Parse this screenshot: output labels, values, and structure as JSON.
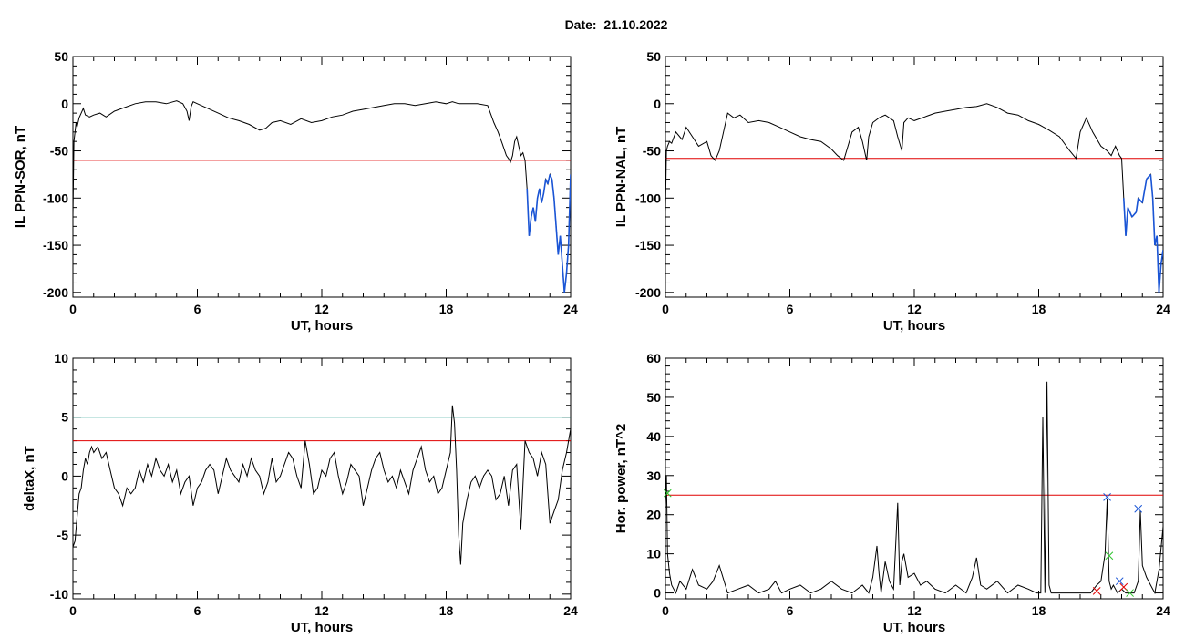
{
  "page": {
    "title": "Date:  21.10.2022"
  },
  "colors": {
    "data": "#000000",
    "red": "#e00000",
    "blue": "#1a55d6",
    "teal": "#1a9a8a",
    "green": "#2ec42e"
  },
  "chart_data": [
    {
      "id": "il-sor",
      "type": "line",
      "xlabel": "UT, hours",
      "ylabel": "IL PPN-SOR, nT",
      "xlim": [
        0,
        24
      ],
      "ylim": [
        -205,
        50
      ],
      "xticks": [
        0,
        6,
        12,
        18,
        24
      ],
      "yticks": [
        -200,
        -150,
        -100,
        -50,
        0,
        50
      ],
      "thresholds": [
        {
          "value": -60,
          "color": "red"
        }
      ],
      "below_threshold_color": "blue",
      "series": [
        {
          "x": [
            0.0,
            0.05,
            0.1,
            0.15,
            0.2,
            0.3,
            0.4,
            0.5,
            0.6,
            0.8,
            1.0,
            1.3,
            1.6,
            2.0,
            2.5,
            3.0,
            3.5,
            4.0,
            4.5,
            5.0,
            5.3,
            5.5,
            5.6,
            5.7,
            5.8,
            6.0,
            6.5,
            7.0,
            7.5,
            8.0,
            8.5,
            9.0,
            9.3,
            9.6,
            10.0,
            10.5,
            11.0,
            11.5,
            12.0,
            12.5,
            13.0,
            13.5,
            14.0,
            14.5,
            15.0,
            15.5,
            16.0,
            16.5,
            17.0,
            17.5,
            18.0,
            18.3,
            18.6,
            19.0,
            19.5,
            20.0,
            20.3,
            20.5,
            20.7,
            20.9,
            21.0,
            21.1,
            21.2,
            21.3,
            21.4,
            21.5,
            21.6,
            21.7,
            21.8,
            21.9,
            22.0,
            22.1,
            22.2,
            22.3,
            22.4,
            22.5,
            22.6,
            22.7,
            22.8,
            22.9,
            23.0,
            23.1,
            23.2,
            23.3,
            23.4,
            23.5,
            23.6,
            23.7,
            23.8,
            23.9,
            24.0
          ],
          "y": [
            -120,
            -40,
            -30,
            -20,
            -25,
            -15,
            -10,
            -5,
            -12,
            -14,
            -12,
            -10,
            -14,
            -8,
            -4,
            0,
            2,
            2,
            0,
            3,
            0,
            -8,
            -18,
            -3,
            2,
            0,
            -5,
            -10,
            -15,
            -18,
            -22,
            -28,
            -26,
            -20,
            -18,
            -22,
            -16,
            -20,
            -18,
            -14,
            -12,
            -8,
            -6,
            -4,
            -2,
            0,
            0,
            -2,
            0,
            2,
            0,
            2,
            0,
            0,
            0,
            -2,
            -20,
            -30,
            -42,
            -55,
            -58,
            -62,
            -55,
            -40,
            -35,
            -45,
            -55,
            -52,
            -60,
            -90,
            -140,
            -120,
            -110,
            -125,
            -100,
            -90,
            -105,
            -95,
            -80,
            -85,
            -75,
            -80,
            -100,
            -130,
            -160,
            -140,
            -170,
            -200,
            -180,
            -150,
            -75
          ]
        }
      ]
    },
    {
      "id": "il-nal",
      "type": "line",
      "xlabel": "UT, hours",
      "ylabel": "IL PPN-NAL, nT",
      "xlim": [
        0,
        24
      ],
      "ylim": [
        -205,
        50
      ],
      "xticks": [
        0,
        6,
        12,
        18,
        24
      ],
      "yticks": [
        -200,
        -150,
        -100,
        -50,
        0,
        50
      ],
      "thresholds": [
        {
          "value": -58,
          "color": "red"
        }
      ],
      "below_threshold_color": "blue",
      "series": [
        {
          "x": [
            0.0,
            0.05,
            0.1,
            0.2,
            0.3,
            0.5,
            0.8,
            1.0,
            1.3,
            1.6,
            2.0,
            2.2,
            2.4,
            2.6,
            2.8,
            3.0,
            3.3,
            3.6,
            4.0,
            4.5,
            5.0,
            5.5,
            6.0,
            6.5,
            7.0,
            7.5,
            8.0,
            8.3,
            8.6,
            8.8,
            9.0,
            9.3,
            9.5,
            9.7,
            9.8,
            10.0,
            10.3,
            10.6,
            11.0,
            11.2,
            11.4,
            11.5,
            11.7,
            12.0,
            12.5,
            13.0,
            13.5,
            14.0,
            14.5,
            15.0,
            15.5,
            16.0,
            16.5,
            17.0,
            17.5,
            18.0,
            18.5,
            19.0,
            19.5,
            19.8,
            20.0,
            20.3,
            20.6,
            21.0,
            21.3,
            21.5,
            21.7,
            21.9,
            22.0,
            22.1,
            22.2,
            22.3,
            22.5,
            22.7,
            22.8,
            23.0,
            23.2,
            23.4,
            23.5,
            23.6,
            23.7,
            23.8,
            23.9,
            24.0
          ],
          "y": [
            -115,
            -50,
            -45,
            -40,
            -42,
            -30,
            -38,
            -25,
            -35,
            -45,
            -40,
            -55,
            -60,
            -50,
            -30,
            -10,
            -15,
            -12,
            -20,
            -18,
            -20,
            -25,
            -30,
            -35,
            -38,
            -40,
            -48,
            -55,
            -60,
            -45,
            -30,
            -25,
            -40,
            -60,
            -35,
            -20,
            -15,
            -12,
            -18,
            -35,
            -50,
            -20,
            -15,
            -18,
            -14,
            -10,
            -8,
            -6,
            -4,
            -3,
            0,
            -4,
            -10,
            -12,
            -18,
            -22,
            -28,
            -35,
            -50,
            -58,
            -30,
            -15,
            -30,
            -45,
            -50,
            -55,
            -45,
            -55,
            -58,
            -100,
            -140,
            -110,
            -120,
            -115,
            -100,
            -105,
            -80,
            -75,
            -100,
            -150,
            -140,
            -200,
            -170,
            -155
          ]
        }
      ]
    },
    {
      "id": "deltax",
      "type": "line",
      "xlabel": "UT, hours",
      "ylabel": "deltaX, nT",
      "xlim": [
        0,
        24
      ],
      "ylim": [
        -10.4,
        10
      ],
      "xticks": [
        0,
        6,
        12,
        18,
        24
      ],
      "yticks": [
        -10,
        -5,
        0,
        5,
        10
      ],
      "thresholds": [
        {
          "value": 5,
          "color": "teal"
        },
        {
          "value": 3,
          "color": "red"
        }
      ],
      "series": [
        {
          "x": [
            0.0,
            0.1,
            0.2,
            0.3,
            0.4,
            0.5,
            0.6,
            0.7,
            0.8,
            0.9,
            1.0,
            1.2,
            1.4,
            1.6,
            1.8,
            2.0,
            2.2,
            2.4,
            2.6,
            2.8,
            3.0,
            3.2,
            3.4,
            3.6,
            3.8,
            4.0,
            4.2,
            4.4,
            4.6,
            4.8,
            5.0,
            5.2,
            5.4,
            5.6,
            5.8,
            6.0,
            6.2,
            6.4,
            6.6,
            6.8,
            7.0,
            7.2,
            7.4,
            7.6,
            7.8,
            8.0,
            8.2,
            8.4,
            8.6,
            8.8,
            9.0,
            9.2,
            9.4,
            9.6,
            9.8,
            10.0,
            10.2,
            10.4,
            10.6,
            10.8,
            11.0,
            11.2,
            11.4,
            11.6,
            11.8,
            12.0,
            12.2,
            12.4,
            12.6,
            12.8,
            13.0,
            13.2,
            13.4,
            13.6,
            13.8,
            14.0,
            14.2,
            14.4,
            14.6,
            14.8,
            15.0,
            15.2,
            15.4,
            15.6,
            15.8,
            16.0,
            16.2,
            16.4,
            16.6,
            16.8,
            17.0,
            17.2,
            17.4,
            17.6,
            17.8,
            18.0,
            18.2,
            18.3,
            18.4,
            18.5,
            18.6,
            18.7,
            18.8,
            19.0,
            19.2,
            19.4,
            19.6,
            19.8,
            20.0,
            20.2,
            20.4,
            20.6,
            20.8,
            21.0,
            21.2,
            21.4,
            21.6,
            21.8,
            22.0,
            22.2,
            22.4,
            22.6,
            22.8,
            23.0,
            23.2,
            23.4,
            23.6,
            23.8,
            24.0
          ],
          "y": [
            -6.0,
            -5.5,
            -3.5,
            -1.5,
            -1.0,
            0.5,
            1.5,
            1.0,
            2.0,
            2.5,
            2.0,
            2.5,
            1.5,
            2.0,
            0.5,
            -1.0,
            -1.5,
            -2.5,
            -1.0,
            -1.5,
            -1.0,
            0.5,
            -0.5,
            1.0,
            0.0,
            1.5,
            0.5,
            0.0,
            1.0,
            -0.5,
            0.5,
            -1.5,
            -0.5,
            0.0,
            -2.5,
            -1.0,
            -0.5,
            0.5,
            1.0,
            0.5,
            -1.5,
            0.0,
            1.5,
            0.5,
            0.0,
            -0.5,
            1.0,
            0.0,
            1.5,
            0.5,
            0.0,
            -1.5,
            -0.5,
            1.5,
            -0.5,
            0.0,
            1.0,
            2.0,
            1.5,
            0.0,
            -1.0,
            3.0,
            1.0,
            -1.5,
            -1.0,
            0.5,
            0.0,
            1.5,
            2.0,
            0.0,
            -1.5,
            -0.5,
            1.0,
            0.5,
            0.0,
            -2.5,
            -1.0,
            0.5,
            1.5,
            2.0,
            0.5,
            -0.5,
            0.0,
            -1.0,
            0.5,
            -0.5,
            -1.5,
            0.5,
            1.5,
            2.5,
            0.5,
            -0.5,
            0.0,
            -1.5,
            -1.0,
            0.5,
            2.0,
            6.0,
            4.5,
            0.5,
            -5.0,
            -7.5,
            -4.0,
            -2.0,
            -0.5,
            0.0,
            -1.0,
            0.0,
            0.5,
            0.0,
            -2.0,
            -1.5,
            0.0,
            -2.5,
            0.5,
            1.0,
            -4.5,
            3.0,
            2.0,
            1.5,
            0.0,
            2.0,
            1.0,
            -4.0,
            -3.0,
            -2.0,
            0.5,
            2.0,
            4.0
          ]
        }
      ]
    },
    {
      "id": "hor-power",
      "type": "line",
      "xlabel": "UT, hours",
      "ylabel": "Hor. power, nT^2",
      "xlim": [
        0,
        24
      ],
      "ylim": [
        -1.5,
        60
      ],
      "xticks": [
        0,
        6,
        12,
        18,
        24
      ],
      "yticks": [
        0,
        10,
        20,
        30,
        40,
        50,
        60
      ],
      "thresholds": [
        {
          "value": 25,
          "color": "red"
        }
      ],
      "series": [
        {
          "x": [
            0.0,
            0.05,
            0.1,
            0.2,
            0.3,
            0.4,
            0.5,
            0.7,
            1.0,
            1.3,
            1.6,
            2.0,
            2.3,
            2.6,
            3.0,
            3.5,
            4.0,
            4.5,
            5.0,
            5.3,
            5.6,
            6.0,
            6.5,
            7.0,
            7.5,
            8.0,
            8.5,
            9.0,
            9.5,
            9.8,
            10.0,
            10.2,
            10.3,
            10.4,
            10.6,
            10.8,
            11.0,
            11.2,
            11.3,
            11.4,
            11.5,
            11.7,
            12.0,
            12.3,
            12.6,
            13.0,
            13.5,
            14.0,
            14.5,
            14.8,
            15.0,
            15.2,
            15.5,
            16.0,
            16.5,
            17.0,
            17.5,
            17.9,
            18.1,
            18.2,
            18.3,
            18.4,
            18.5,
            18.6,
            18.7,
            18.8,
            19.0,
            19.5,
            20.0,
            20.5,
            20.8,
            21.0,
            21.2,
            21.3,
            21.4,
            21.5,
            21.6,
            21.8,
            22.0,
            22.2,
            22.4,
            22.6,
            22.8,
            22.9,
            23.0,
            23.2,
            23.4,
            23.6,
            23.8,
            24.0
          ],
          "y": [
            22,
            30,
            10,
            5,
            2,
            1,
            0,
            3,
            1,
            6,
            2,
            1,
            3,
            7,
            0,
            1,
            2,
            0,
            1,
            3,
            0,
            1,
            2,
            0,
            1,
            3,
            1,
            0,
            2,
            0,
            4,
            12,
            5,
            0,
            8,
            3,
            1,
            23,
            2,
            8,
            10,
            4,
            5,
            2,
            3,
            1,
            0,
            2,
            0,
            4,
            9,
            2,
            1,
            3,
            0,
            2,
            1,
            0,
            0,
            45,
            0,
            54,
            2,
            0,
            0,
            0,
            0,
            0,
            0,
            0,
            2,
            3,
            10,
            24,
            3,
            1,
            2,
            0,
            1,
            0,
            0,
            0,
            3,
            21,
            7,
            4,
            2,
            0,
            6,
            17
          ]
        }
      ],
      "markers": [
        {
          "x": 0.1,
          "y": 25.5,
          "color": "green"
        },
        {
          "x": 21.3,
          "y": 24.5,
          "color": "blue"
        },
        {
          "x": 21.4,
          "y": 9.5,
          "color": "green"
        },
        {
          "x": 21.9,
          "y": 3.0,
          "color": "blue"
        },
        {
          "x": 22.1,
          "y": 1.5,
          "color": "red"
        },
        {
          "x": 22.8,
          "y": 21.5,
          "color": "blue"
        },
        {
          "x": 20.8,
          "y": 0.5,
          "color": "red"
        },
        {
          "x": 22.4,
          "y": 0.0,
          "color": "green"
        }
      ]
    }
  ]
}
